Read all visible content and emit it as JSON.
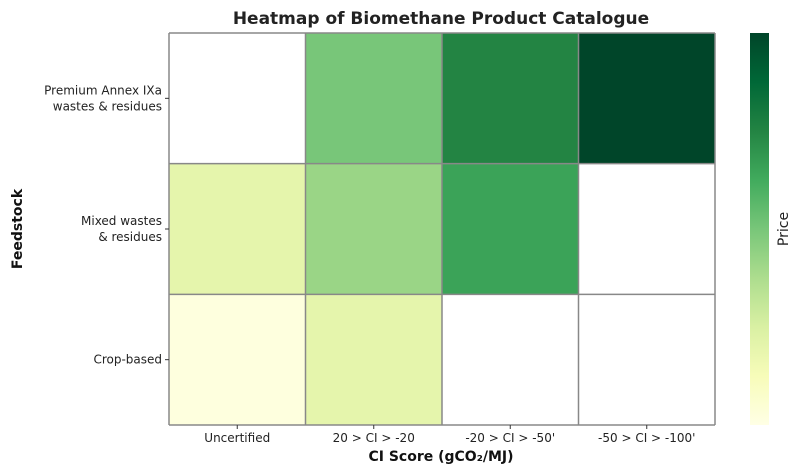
{
  "chart_data": {
    "type": "heatmap",
    "title": "Heatmap of Biomethane Product Catalogue",
    "xlabel": "CI Score (gCO₂/MJ)",
    "ylabel": "Feedstock",
    "x_categories": [
      "Uncertified",
      "20 > CI > -20",
      "-20 > CI > -50'",
      "-50 > CI > -100'"
    ],
    "y_categories": [
      {
        "lines": [
          "Premium Annex IXa",
          "wastes & residues"
        ]
      },
      {
        "lines": [
          "Mixed wastes",
          "& residues"
        ]
      },
      {
        "lines": [
          "Crop-based"
        ]
      }
    ],
    "values": [
      [
        null,
        0.5,
        0.75,
        1.0
      ],
      [
        0.2,
        0.42,
        0.65,
        null
      ],
      [
        0.02,
        0.2,
        null,
        null
      ]
    ],
    "colorbar": {
      "label": "Price",
      "colormap": "Greens-like (YlGn)",
      "ticks": []
    },
    "missing_color": "#ffffff",
    "grid_color": "#888888"
  }
}
